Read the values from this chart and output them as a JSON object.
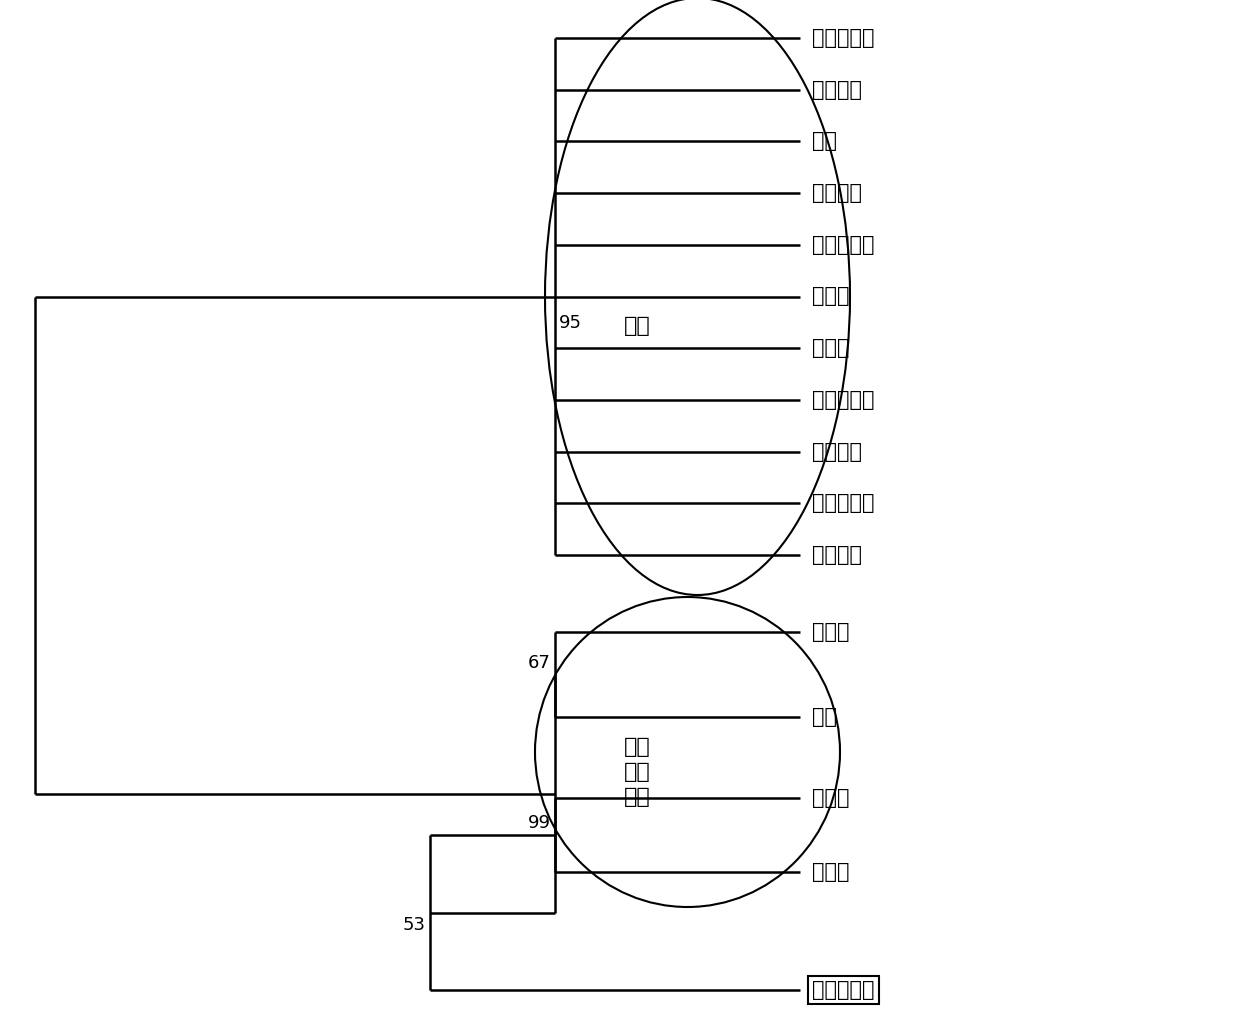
{
  "taxa": [
    "博爱八月黄",
    "富平尖柿",
    "富有",
    "恭城月柿",
    "海安小方柿",
    "磨盘柿",
    "小屁子",
    "休宁扁墓柿",
    "玉环长柿",
    "沼安元室柿",
    "中柿一号",
    "金枣柿",
    "油柿",
    "君迁子",
    "浙江柿",
    "云南野毛柿"
  ],
  "group1_label": "柿种",
  "group2_label": "其他\n柿属\n植物",
  "line_color": "#000000",
  "bg_color": "#ffffff",
  "font_size": 13,
  "label_font_size": 15,
  "group_label_font_size": 16
}
